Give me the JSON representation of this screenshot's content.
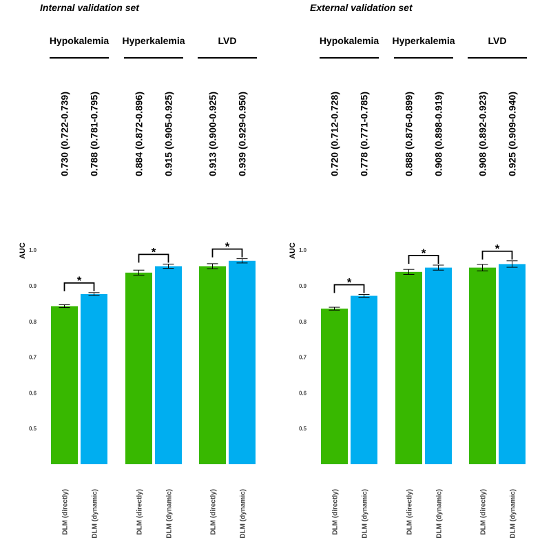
{
  "colors": {
    "directly": "#38b800",
    "dynamic": "#00aef0"
  },
  "chart_data": [
    {
      "type": "bar",
      "title": "Internal validation set",
      "ylabel": "AUC",
      "ylim": [
        0.4,
        1.0
      ],
      "yticks": [
        "1.0",
        "0.9",
        "0.8",
        "0.7",
        "0.6",
        "0.5"
      ],
      "groups": [
        {
          "name": "Hypokalemia",
          "significance": "*",
          "bars": [
            {
              "category": "DLM (directly)",
              "value": 0.843,
              "err_low": 0.839,
              "err_high": 0.847,
              "ci": "0.730 (0.722-0.739)"
            },
            {
              "category": "DLM (dynamic)",
              "value": 0.877,
              "err_low": 0.873,
              "err_high": 0.881,
              "ci": "0.788 (0.781-0.795)"
            }
          ]
        },
        {
          "name": "Hyperkalemia",
          "significance": "*",
          "bars": [
            {
              "category": "DLM (directly)",
              "value": 0.937,
              "err_low": 0.93,
              "err_high": 0.944,
              "ci": "0.884 (0.872-0.896)"
            },
            {
              "category": "DLM (dynamic)",
              "value": 0.955,
              "err_low": 0.949,
              "err_high": 0.961,
              "ci": "0.915 (0.905-0.925)"
            }
          ]
        },
        {
          "name": "LVD",
          "significance": "*",
          "bars": [
            {
              "category": "DLM (directly)",
              "value": 0.955,
              "err_low": 0.948,
              "err_high": 0.962,
              "ci": "0.913 (0.900-0.925)"
            },
            {
              "category": "DLM (dynamic)",
              "value": 0.97,
              "err_low": 0.964,
              "err_high": 0.976,
              "ci": "0.939 (0.929-0.950)"
            }
          ]
        }
      ]
    },
    {
      "type": "bar",
      "title": "External validation set",
      "ylabel": "AUC",
      "ylim": [
        0.4,
        1.0
      ],
      "yticks": [
        "1.0",
        "0.9",
        "0.8",
        "0.7",
        "0.6",
        "0.5"
      ],
      "groups": [
        {
          "name": "Hypokalemia",
          "significance": "*",
          "bars": [
            {
              "category": "DLM (directly)",
              "value": 0.836,
              "err_low": 0.832,
              "err_high": 0.84,
              "ci": "0.720 (0.712-0.728)"
            },
            {
              "category": "DLM (dynamic)",
              "value": 0.872,
              "err_low": 0.868,
              "err_high": 0.876,
              "ci": "0.778 (0.771-0.785)"
            }
          ]
        },
        {
          "name": "Hyperkalemia",
          "significance": "*",
          "bars": [
            {
              "category": "DLM (directly)",
              "value": 0.939,
              "err_low": 0.932,
              "err_high": 0.946,
              "ci": "0.888 (0.876-0.899)"
            },
            {
              "category": "DLM (dynamic)",
              "value": 0.951,
              "err_low": 0.944,
              "err_high": 0.958,
              "ci": "0.908 (0.898-0.919)"
            }
          ]
        },
        {
          "name": "LVD",
          "significance": "*",
          "bars": [
            {
              "category": "DLM (directly)",
              "value": 0.951,
              "err_low": 0.942,
              "err_high": 0.96,
              "ci": "0.908 (0.892-0.923)"
            },
            {
              "category": "DLM (dynamic)",
              "value": 0.961,
              "err_low": 0.952,
              "err_high": 0.97,
              "ci": "0.925 (0.909-0.940)"
            }
          ]
        }
      ]
    }
  ]
}
